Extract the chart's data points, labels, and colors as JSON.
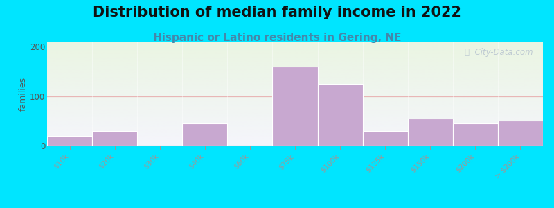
{
  "title": "Distribution of median family income in 2022",
  "subtitle": "Hispanic or Latino residents in Gering, NE",
  "ylabel": "families",
  "categories": [
    "$10k",
    "$20k",
    "$30k",
    "$40k",
    "$60k",
    "$75k",
    "$100k",
    "$125k",
    "$150k",
    "$200k",
    "> $200k"
  ],
  "values": [
    20,
    30,
    0,
    45,
    0,
    160,
    125,
    30,
    55,
    45,
    50
  ],
  "bar_color": "#c8a8d0",
  "background_outer": "#00e5ff",
  "background_plot_top": "#eaf5e2",
  "background_plot_bottom": "#f5f5fc",
  "grid_color": "#e8b0b0",
  "yticks": [
    0,
    100,
    200
  ],
  "ylim": [
    0,
    210
  ],
  "title_fontsize": 15,
  "subtitle_fontsize": 11,
  "subtitle_color": "#4488aa",
  "ylabel_fontsize": 9,
  "watermark_text": "ⓘ  City-Data.com",
  "watermark_color": "#b8c4d0",
  "tick_label_fontsize": 7.5
}
